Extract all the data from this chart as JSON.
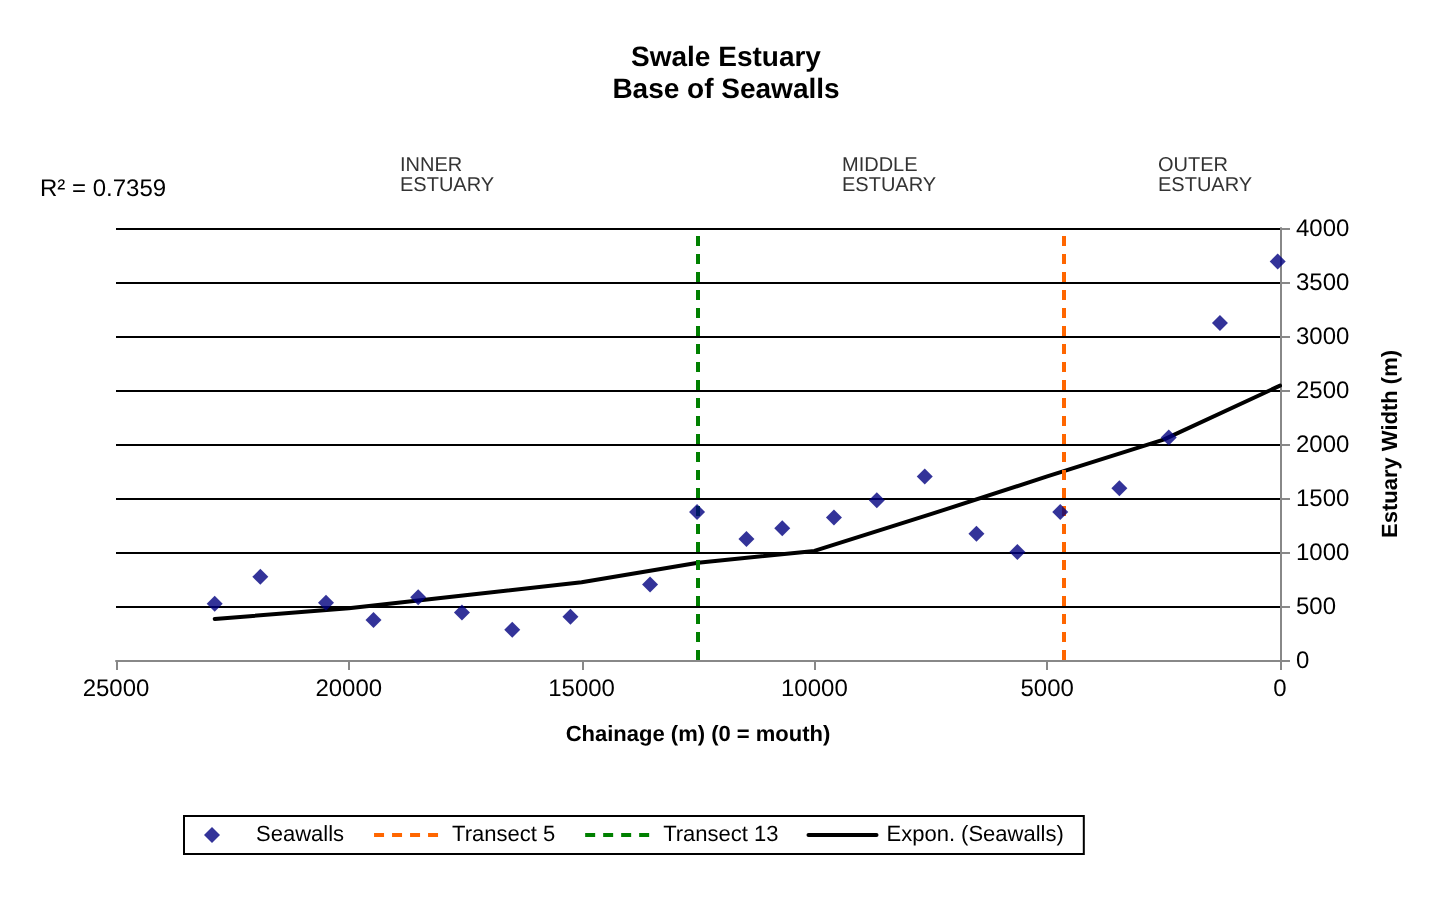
{
  "chart_data": {
    "type": "scatter",
    "title": "Swale Estuary",
    "subtitle": "Base of Seawalls",
    "xlabel": "Chainage (m) (0 = mouth)",
    "ylabel": "Estuary Width (m)",
    "annotations": [
      "R² = 0.7359",
      "INNER ESTUARY",
      "MIDDLE ESTUARY",
      "OUTER ESTUARY"
    ],
    "series": [
      {
        "name": "Seawalls",
        "color": "#000080",
        "marker": "diamond",
        "x": [
          22880,
          21900,
          20490,
          19470,
          18510,
          17570,
          16490,
          15240,
          13530,
          12520,
          11460,
          10690,
          9580,
          8660,
          7630,
          6520,
          5640,
          4720,
          3450,
          2390,
          1290,
          50
        ],
        "values": [
          520,
          770,
          530,
          370,
          580,
          440,
          280,
          400,
          700,
          1370,
          1120,
          1220,
          1320,
          1480,
          1700,
          1170,
          1000,
          1370,
          1590,
          2060,
          3120,
          3690
        ]
      },
      {
        "name": "Expon. (Seawalls)",
        "type": "line",
        "color": "#000000",
        "marker": "none",
        "line_style": "solid",
        "x": [
          22880,
          20000,
          17500,
          15000,
          12500,
          10000,
          7500,
          5000,
          2500,
          0
        ],
        "values": [
          380,
          480,
          600,
          720,
          900,
          1010,
          1350,
          1700,
          2040,
          2540
        ]
      }
    ],
    "ref_lines": [
      {
        "axis": "x",
        "value": 4660,
        "label": "Transect 5",
        "color": "#ff6600",
        "line_style": "dashed"
      },
      {
        "axis": "x",
        "value": 12530,
        "label": "Transect 13",
        "color": "#008000",
        "line_style": "dashed"
      }
    ],
    "xlim": [
      25000,
      0
    ],
    "xticks": [
      25000,
      20000,
      15000,
      10000,
      5000,
      0
    ],
    "ylim": [
      0,
      4000
    ],
    "yticks": [
      0,
      500,
      1000,
      1500,
      2000,
      2500,
      3000,
      3500,
      4000
    ],
    "grid": "y",
    "legend": "bottom"
  }
}
